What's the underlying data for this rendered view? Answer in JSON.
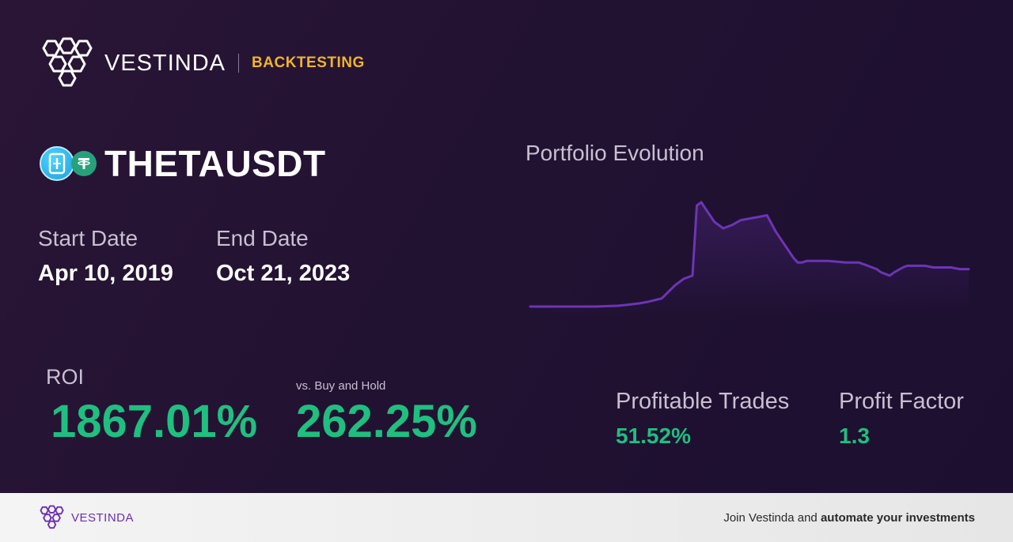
{
  "header": {
    "brand": "VESTINDA",
    "section": "BACKTESTING"
  },
  "pair": {
    "name": "THETAUSDT",
    "base_icon": "theta-coin-icon",
    "quote_icon": "tether-coin-icon"
  },
  "dates": {
    "start_label": "Start Date",
    "start_value": "Apr 10, 2019",
    "end_label": "End Date",
    "end_value": "Oct 21, 2023"
  },
  "metrics": {
    "roi_label": "ROI",
    "roi_value": "1867.01%",
    "bh_label": "vs. Buy and Hold",
    "bh_value": "262.25%",
    "profitable_label": "Profitable Trades",
    "profitable_value": "51.52%",
    "pf_label": "Profit Factor",
    "pf_value": "1.3"
  },
  "chart_data": {
    "type": "area",
    "title": "Portfolio Evolution",
    "xlabel": "",
    "ylabel": "",
    "grid": false,
    "legend": "none",
    "color": "#6c35b5",
    "x": [
      0,
      5,
      10,
      15,
      20,
      22,
      25,
      27,
      30,
      33,
      35,
      36,
      37,
      38,
      39,
      40,
      42,
      44,
      46,
      48,
      50,
      52,
      54,
      56,
      58,
      60,
      61,
      62,
      63,
      64,
      65,
      68,
      72,
      75,
      77,
      79,
      80,
      82,
      83,
      85,
      86,
      88,
      90,
      92,
      94,
      96,
      98,
      100
    ],
    "values": [
      0,
      0,
      0,
      0,
      0.5,
      1,
      2,
      3,
      5,
      13,
      17,
      18,
      19,
      62,
      64,
      60,
      52,
      48,
      50,
      53,
      54,
      55,
      56,
      46,
      38,
      30,
      27,
      27,
      28,
      28,
      28,
      28,
      27,
      27,
      25,
      23,
      21,
      19,
      21,
      24,
      25,
      25,
      25,
      24,
      24,
      24,
      23,
      23
    ]
  },
  "footer": {
    "brand": "VESTINDA",
    "cta_prefix": "Join Vestinda and",
    "cta_bold": "automate your investments"
  }
}
